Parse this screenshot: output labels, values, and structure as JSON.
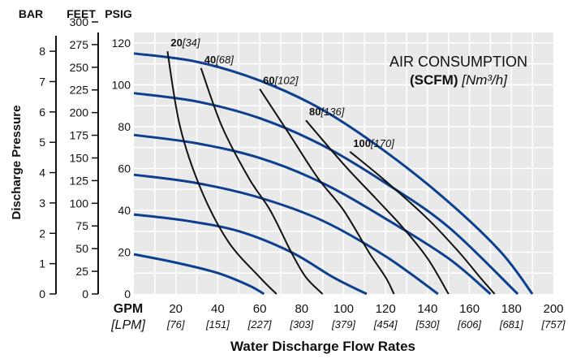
{
  "chart_data": {
    "type": "line",
    "x_units": {
      "primary": "GPM",
      "secondary": "[LPM]"
    },
    "x_ticks": [
      {
        "gpm": "20",
        "lpm": "[76]",
        "v": 20
      },
      {
        "gpm": "40",
        "lpm": "[151]",
        "v": 40
      },
      {
        "gpm": "60",
        "lpm": "[227]",
        "v": 60
      },
      {
        "gpm": "80",
        "lpm": "[303]",
        "v": 80
      },
      {
        "gpm": "100",
        "lpm": "[379]",
        "v": 100
      },
      {
        "gpm": "120",
        "lpm": "[454]",
        "v": 120
      },
      {
        "gpm": "140",
        "lpm": "[530]",
        "v": 140
      },
      {
        "gpm": "160",
        "lpm": "[606]",
        "v": 160
      },
      {
        "gpm": "180",
        "lpm": "[681]",
        "v": 180
      },
      {
        "gpm": "200",
        "lpm": "[757]",
        "v": 200
      }
    ],
    "xlim": [
      0,
      200
    ],
    "ylim": [
      0,
      125
    ],
    "xlabel": "Water Discharge Flow Rates",
    "ylabel": "Discharge Pressure",
    "axis_headers": {
      "bar": "BAR",
      "feet": "FEET",
      "psig": "PSIG"
    },
    "psig_ticks": [
      "0",
      "20",
      "40",
      "60",
      "80",
      "100",
      "120"
    ],
    "feet_ticks": [
      "0",
      "25",
      "50",
      "75",
      "100",
      "125",
      "150",
      "175",
      "200",
      "225",
      "250",
      "275",
      "300"
    ],
    "bar_ticks": [
      "0",
      "1",
      "2",
      "3",
      "4",
      "5",
      "6",
      "7",
      "8"
    ],
    "annotation": {
      "line1": "AIR CONSUMPTION",
      "bold": "(SCFM)",
      "italic": "[Nm³/h]"
    },
    "pressure_curves": [
      {
        "inlet_psig": 20,
        "points": [
          [
            0,
            19
          ],
          [
            20,
            15
          ],
          [
            40,
            10
          ],
          [
            55,
            4
          ],
          [
            62,
            0
          ]
        ]
      },
      {
        "inlet_psig": 40,
        "points": [
          [
            0,
            38
          ],
          [
            25,
            35
          ],
          [
            50,
            30
          ],
          [
            75,
            20
          ],
          [
            95,
            8
          ],
          [
            111,
            0
          ]
        ]
      },
      {
        "inlet_psig": 60,
        "points": [
          [
            0,
            57
          ],
          [
            30,
            53
          ],
          [
            60,
            46
          ],
          [
            90,
            35
          ],
          [
            120,
            18
          ],
          [
            145,
            0
          ]
        ]
      },
      {
        "inlet_psig": 80,
        "points": [
          [
            0,
            76
          ],
          [
            30,
            72
          ],
          [
            60,
            65
          ],
          [
            90,
            53
          ],
          [
            120,
            36
          ],
          [
            150,
            17
          ],
          [
            170,
            0
          ]
        ]
      },
      {
        "inlet_psig": 100,
        "points": [
          [
            0,
            96
          ],
          [
            30,
            92
          ],
          [
            60,
            84
          ],
          [
            90,
            71
          ],
          [
            120,
            53
          ],
          [
            150,
            32
          ],
          [
            183,
            0
          ]
        ]
      },
      {
        "inlet_psig": 120,
        "points": [
          [
            0,
            115
          ],
          [
            30,
            111
          ],
          [
            60,
            102
          ],
          [
            90,
            88
          ],
          [
            120,
            68
          ],
          [
            150,
            44
          ],
          [
            175,
            20
          ],
          [
            190,
            0
          ]
        ]
      }
    ],
    "air_consumption_curves": [
      {
        "label": "20",
        "metric": "[34]",
        "points": [
          [
            16,
            116
          ],
          [
            22,
            80
          ],
          [
            32,
            50
          ],
          [
            45,
            25
          ],
          [
            60,
            8
          ],
          [
            68,
            0
          ]
        ]
      },
      {
        "label": "40",
        "metric": "[68]",
        "points": [
          [
            32,
            108
          ],
          [
            42,
            80
          ],
          [
            55,
            55
          ],
          [
            65,
            40
          ],
          [
            75,
            20
          ],
          [
            82,
            8
          ],
          [
            90,
            0
          ]
        ]
      },
      {
        "label": "60",
        "metric": "[102]",
        "points": [
          [
            60,
            98
          ],
          [
            75,
            75
          ],
          [
            88,
            55
          ],
          [
            100,
            40
          ],
          [
            112,
            20
          ],
          [
            120,
            8
          ],
          [
            124,
            0
          ]
        ]
      },
      {
        "label": "80",
        "metric": "[136]",
        "points": [
          [
            82,
            83
          ],
          [
            100,
            62
          ],
          [
            115,
            46
          ],
          [
            128,
            32
          ],
          [
            140,
            17
          ],
          [
            150,
            0
          ]
        ]
      },
      {
        "label": "100",
        "metric": "[170]",
        "points": [
          [
            103,
            68
          ],
          [
            120,
            54
          ],
          [
            140,
            36
          ],
          [
            155,
            20
          ],
          [
            165,
            8
          ],
          [
            172,
            0
          ]
        ]
      }
    ]
  }
}
